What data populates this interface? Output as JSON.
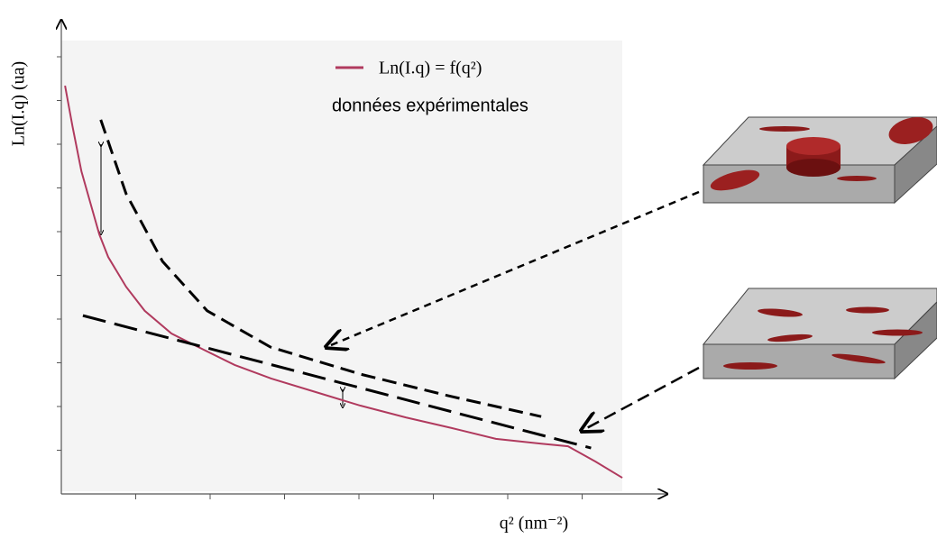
{
  "chart_data": {
    "type": "line",
    "y_label": "Ln(I.q) (ua)",
    "x_label": "q² (nm⁻²)",
    "xlim": [
      0,
      8
    ],
    "ylim": [
      0,
      10.5
    ],
    "xticks": [
      1,
      2,
      3,
      4,
      5,
      6,
      7
    ],
    "yticks": [
      1,
      2,
      3,
      4,
      5,
      6,
      7,
      8,
      9,
      10
    ],
    "legend_caption": "données expérimentales",
    "series": [
      {
        "name": "Ln(I.q) = f(q²)",
        "color": "#b03a5e",
        "dashed": false,
        "x": [
          0.05,
          0.15,
          0.27,
          0.39,
          0.51,
          0.63,
          0.87,
          1.12,
          1.48,
          1.84,
          2.33,
          2.82,
          3.42,
          4.02,
          4.63,
          5.24,
          5.84,
          6.45,
          6.81,
          7.18,
          7.54
        ],
        "values": [
          9.34,
          8.41,
          7.38,
          6.66,
          5.94,
          5.42,
          4.74,
          4.19,
          3.67,
          3.36,
          2.95,
          2.64,
          2.33,
          2.02,
          1.75,
          1.51,
          1.26,
          1.15,
          1.09,
          0.74,
          0.37
        ]
      },
      {
        "color": "#000000",
        "dashed": true,
        "x": [
          0.53,
          0.87,
          1.36,
          1.96,
          2.81,
          4.02,
          5.24,
          6.45
        ],
        "values": [
          8.56,
          6.87,
          5.32,
          4.19,
          3.36,
          2.74,
          2.23,
          1.77
        ]
      },
      {
        "color": "#000000",
        "dashed": true,
        "x": [
          0.29,
          7.12
        ],
        "values": [
          4.08,
          1.05
        ]
      }
    ]
  }
}
